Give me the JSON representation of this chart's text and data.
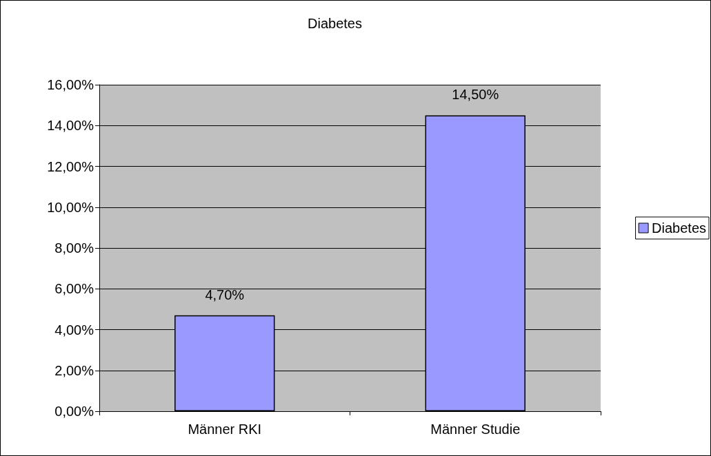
{
  "chart_data": {
    "type": "bar",
    "title": "Diabetes",
    "categories": [
      "Männer RKI",
      "Männer Studie"
    ],
    "series": [
      {
        "name": "Diabetes",
        "color": "#9999ff",
        "values": [
          4.7,
          14.5
        ],
        "value_labels": [
          "4,70%",
          "14,50%"
        ]
      }
    ],
    "ylim": [
      0,
      16
    ],
    "yticks": [
      {
        "value": 0,
        "label": "0,00%"
      },
      {
        "value": 2,
        "label": "2,00%"
      },
      {
        "value": 4,
        "label": "4,00%"
      },
      {
        "value": 6,
        "label": "6,00%"
      },
      {
        "value": 8,
        "label": "8,00%"
      },
      {
        "value": 10,
        "label": "10,00%"
      },
      {
        "value": 12,
        "label": "12,00%"
      },
      {
        "value": 14,
        "label": "14,00%"
      },
      {
        "value": 16,
        "label": "16,00%"
      }
    ],
    "grid": "y",
    "legend": "right"
  }
}
